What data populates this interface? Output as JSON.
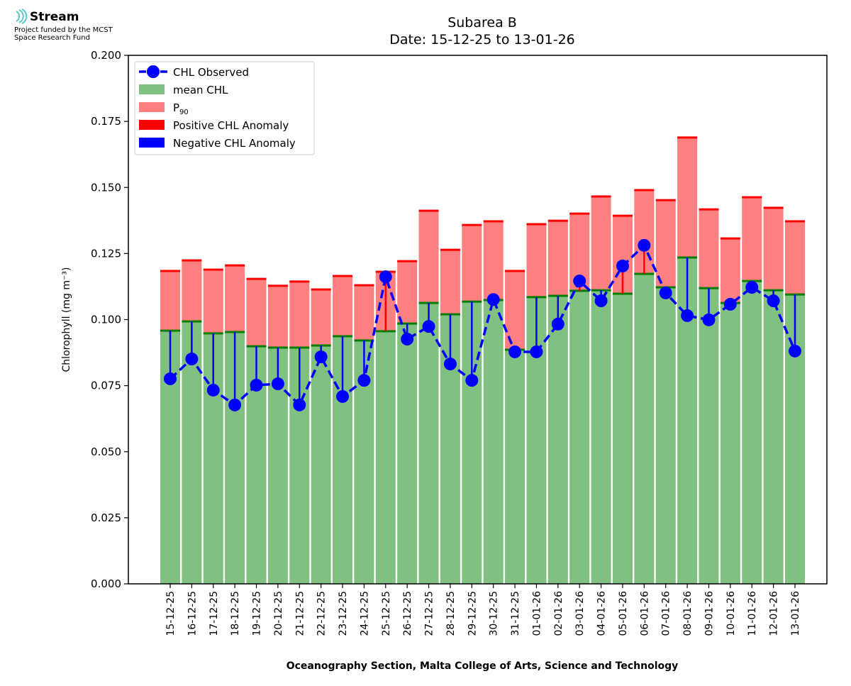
{
  "logo": {
    "name": "Stream",
    "line1": "Project funded by the MCST",
    "line2": "Space Research Fund"
  },
  "chart_data": {
    "type": "bar",
    "title": "Subarea B",
    "subtitle": "Date: 15-12-25 to 13-01-26",
    "xlabel": "Oceanography Section, Malta College of Arts, Science and Technology",
    "ylabel": "Chlorophyll (mg m⁻³)",
    "ylim": [
      0,
      0.2
    ],
    "yticks": [
      "0.000",
      "0.025",
      "0.050",
      "0.075",
      "0.100",
      "0.125",
      "0.150",
      "0.175",
      "0.200"
    ],
    "legend_position": "top-left",
    "legend": [
      "CHL Observed",
      "mean CHL",
      "P90",
      "Positive CHL Anomaly",
      "Negative CHL Anomaly"
    ],
    "colors": {
      "observed": "#0000ff",
      "mean": "#80c080",
      "mean_edge": "#007f00",
      "p90": "#ff8080",
      "p90_edge": "#ff0000",
      "positive": "#ff0000",
      "negative": "#0000ff"
    },
    "categories": [
      "15-12-25",
      "16-12-25",
      "17-12-25",
      "18-12-25",
      "19-12-25",
      "20-12-25",
      "21-12-25",
      "22-12-25",
      "23-12-25",
      "24-12-25",
      "25-12-25",
      "26-12-25",
      "27-12-25",
      "28-12-25",
      "29-12-25",
      "30-12-25",
      "31-12-25",
      "01-01-26",
      "02-01-26",
      "03-01-26",
      "04-01-26",
      "05-01-26",
      "06-01-26",
      "07-01-26",
      "08-01-26",
      "09-01-26",
      "10-01-26",
      "11-01-26",
      "12-01-26",
      "13-01-26"
    ],
    "series": [
      {
        "name": "mean CHL",
        "values": [
          0.0958,
          0.0993,
          0.0948,
          0.0953,
          0.0899,
          0.0894,
          0.0894,
          0.0902,
          0.0937,
          0.0921,
          0.0956,
          0.0985,
          0.1063,
          0.102,
          0.1068,
          0.1074,
          0.0886,
          0.1085,
          0.109,
          0.1109,
          0.1111,
          0.1098,
          0.1173,
          0.1122,
          0.1235,
          0.1119,
          0.1063,
          0.1146,
          0.1111,
          0.1095
        ]
      },
      {
        "name": "P90",
        "values": [
          0.1184,
          0.1224,
          0.1189,
          0.1205,
          0.1154,
          0.1128,
          0.1144,
          0.1114,
          0.1165,
          0.113,
          0.1181,
          0.1221,
          0.1412,
          0.1264,
          0.1358,
          0.1372,
          0.1184,
          0.1361,
          0.1374,
          0.1401,
          0.1466,
          0.1393,
          0.149,
          0.1452,
          0.1689,
          0.1417,
          0.1307,
          0.1463,
          0.1423,
          0.1372
        ]
      },
      {
        "name": "CHL Observed",
        "values": [
          0.0776,
          0.0851,
          0.0733,
          0.0677,
          0.0752,
          0.0757,
          0.0677,
          0.0859,
          0.0709,
          0.077,
          0.1162,
          0.0926,
          0.0974,
          0.0832,
          0.077,
          0.1076,
          0.0878,
          0.0878,
          0.0983,
          0.1146,
          0.1071,
          0.1203,
          0.1281,
          0.1101,
          0.1015,
          0.0999,
          0.1058,
          0.1122,
          0.1071,
          0.0881
        ]
      }
    ]
  }
}
